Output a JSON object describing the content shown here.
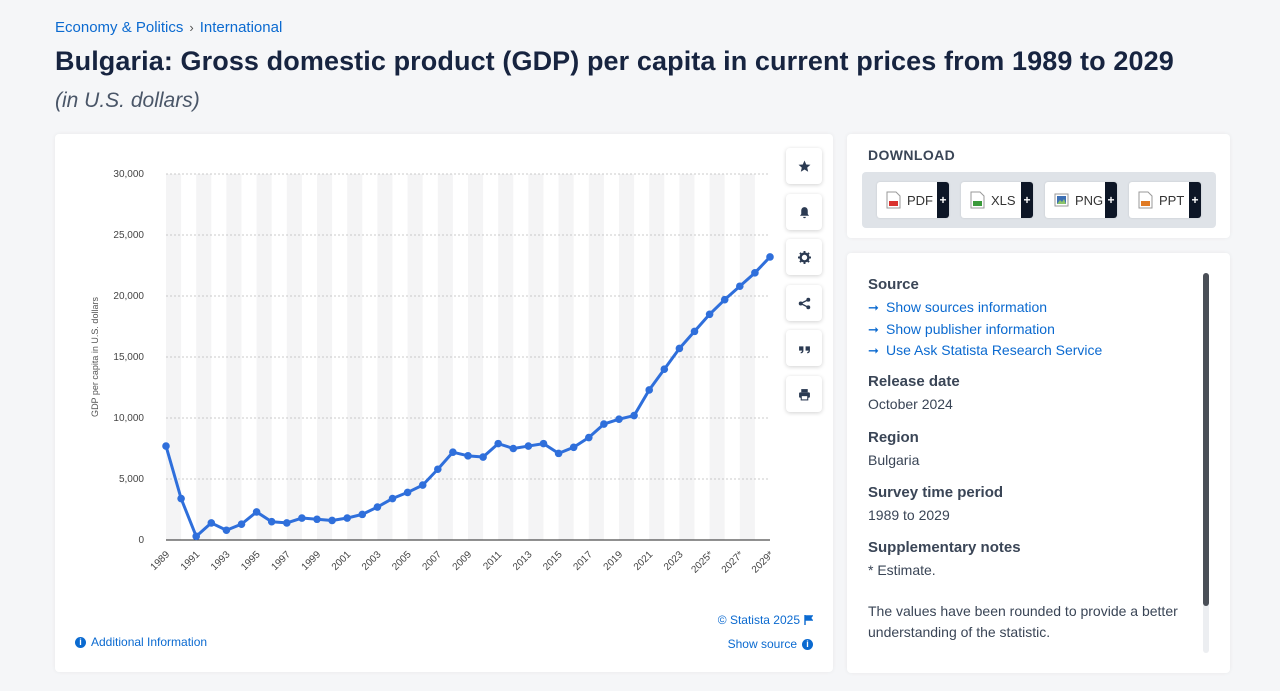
{
  "breadcrumb": {
    "section": "Economy & Politics",
    "separator": "›",
    "subsection": "International"
  },
  "page": {
    "title": "Bulgaria: Gross domestic product (GDP) per capita in current prices from 1989 to 2029",
    "subtitle": "(in U.S. dollars)"
  },
  "chart_tools": {
    "favorite_icon": "star-icon",
    "notify_icon": "bell-icon",
    "settings_icon": "gear-icon",
    "share_icon": "share-icon",
    "cite_icon": "quote-icon",
    "print_icon": "print-icon"
  },
  "chart_footer": {
    "credit": "© Statista 2025",
    "show_source": "Show source",
    "additional_info": "Additional Information"
  },
  "download": {
    "title": "DOWNLOAD",
    "buttons": [
      {
        "label": "PDF",
        "plus": "+",
        "color": "#d9322e"
      },
      {
        "label": "XLS",
        "plus": "+",
        "color": "#3a9a3a"
      },
      {
        "label": "PNG",
        "plus": "+",
        "color": "#3c6fb4"
      },
      {
        "label": "PPT",
        "plus": "+",
        "color": "#e07a23"
      }
    ]
  },
  "info": {
    "source_heading": "Source",
    "source_links": [
      "Show sources information",
      "Show publisher information",
      "Use Ask Statista Research Service"
    ],
    "release_heading": "Release date",
    "release_value": "October 2024",
    "region_heading": "Region",
    "region_value": "Bulgaria",
    "period_heading": "Survey time period",
    "period_value": "1989 to 2029",
    "notes_heading": "Supplementary notes",
    "notes_value": "* Estimate.",
    "notes_extra": "The values have been rounded to provide a better understanding of the statistic."
  },
  "chart_data": {
    "type": "line",
    "title": "",
    "xlabel": "",
    "ylabel": "GDP per capita in U.S. dollars",
    "ylim": [
      0,
      30000
    ],
    "yticks": [
      0,
      5000,
      10000,
      15000,
      20000,
      25000,
      30000
    ],
    "ytick_labels": [
      "0",
      "5,000",
      "10,000",
      "15,000",
      "20,000",
      "25,000",
      "30,000"
    ],
    "x": [
      "1989",
      "1990",
      "1991",
      "1992",
      "1993",
      "1994",
      "1995",
      "1996",
      "1997",
      "1998",
      "1999",
      "2000",
      "2001",
      "2002",
      "2003",
      "2004",
      "2005",
      "2006",
      "2007",
      "2008",
      "2009",
      "2010",
      "2011",
      "2012",
      "2013",
      "2014",
      "2015",
      "2016",
      "2017",
      "2018",
      "2019",
      "2020",
      "2021",
      "2022",
      "2023",
      "2024",
      "2025*",
      "2026*",
      "2027*",
      "2028*",
      "2029*"
    ],
    "xtick_labels": [
      "1989",
      "1991",
      "1993",
      "1995",
      "1997",
      "1999",
      "2001",
      "2003",
      "2005",
      "2007",
      "2009",
      "2011",
      "2013",
      "2015",
      "2017",
      "2019",
      "2021",
      "2023",
      "2025*",
      "2027*",
      "2029*"
    ],
    "series": [
      {
        "color": "#2f6fdb",
        "values": [
          7700,
          3400,
          300,
          1400,
          800,
          1300,
          2300,
          1500,
          1400,
          1800,
          1700,
          1600,
          1800,
          2100,
          2700,
          3400,
          3900,
          4500,
          5800,
          7200,
          6900,
          6800,
          7900,
          7500,
          7700,
          7900,
          7100,
          7600,
          8400,
          9500,
          9900,
          10200,
          12300,
          14000,
          15700,
          17100,
          18500,
          19700,
          20800,
          21900,
          23200
        ]
      }
    ],
    "grid": true,
    "alternating_columns": true,
    "legend": "none"
  }
}
